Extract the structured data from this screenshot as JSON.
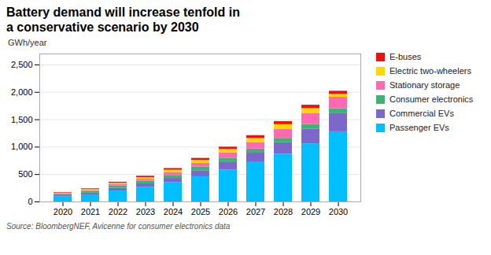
{
  "chart_data": {
    "type": "bar",
    "title": "Battery demand will increase tenfold in\na conservative scenario by 2030",
    "ylabel": "GWh/year",
    "source": "Source: BloombergNEF, Avicenne for consumer electronics data",
    "categories": [
      "2020",
      "2021",
      "2022",
      "2023",
      "2024",
      "2025",
      "2026",
      "2027",
      "2028",
      "2029",
      "2030"
    ],
    "series": [
      {
        "name": "Passenger EVs",
        "color": "#00BFFF",
        "values": [
          96,
          130,
          200,
          270,
          350,
          460,
          580,
          720,
          870,
          1060,
          1280
        ]
      },
      {
        "name": "Commercial EVs",
        "color": "#7B68C8",
        "values": [
          20,
          30,
          50,
          60,
          80,
          110,
          150,
          170,
          210,
          270,
          330
        ]
      },
      {
        "name": "Consumer electronics",
        "color": "#3CB371",
        "values": [
          25,
          35,
          45,
          50,
          55,
          65,
          70,
          75,
          80,
          85,
          90
        ]
      },
      {
        "name": "Stationary storage",
        "color": "#FF69B4",
        "values": [
          10,
          15,
          25,
          35,
          55,
          70,
          95,
          120,
          165,
          195,
          210
        ]
      },
      {
        "name": "Electric two-wheelers",
        "color": "#FFD700",
        "values": [
          10,
          15,
          20,
          30,
          40,
          55,
          65,
          75,
          85,
          95,
          55
        ]
      },
      {
        "name": "E-buses",
        "color": "#EE1111",
        "values": [
          10,
          15,
          20,
          25,
          30,
          35,
          40,
          50,
          55,
          60,
          55
        ]
      }
    ],
    "ylim": [
      0,
      2700
    ],
    "yticks": [
      0,
      500,
      {
        "value": 1000,
        "label": "1,000"
      },
      {
        "value": 1500,
        "label": "1,500"
      },
      {
        "value": 2000,
        "label": "2,000"
      },
      {
        "value": 2500,
        "label": "2,500"
      }
    ],
    "stacked": true,
    "grid": true,
    "legend": "right"
  }
}
